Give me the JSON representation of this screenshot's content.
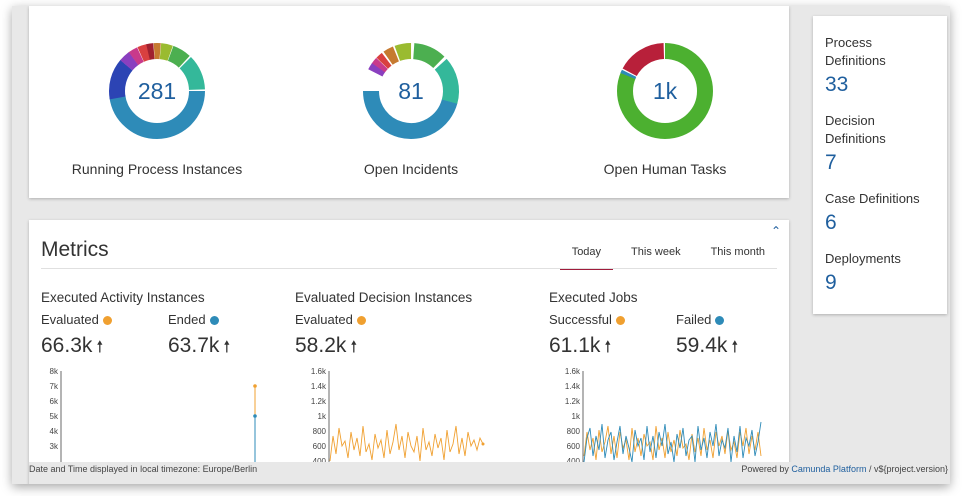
{
  "donuts": [
    {
      "value": "281",
      "label": "Running Process Instances"
    },
    {
      "value": "81",
      "label": "Open Incidents"
    },
    {
      "value": "1k",
      "label": "Open Human Tasks"
    }
  ],
  "sidebar": {
    "items": [
      {
        "label": "Process Definitions",
        "value": "33"
      },
      {
        "label": "Decision Definitions",
        "value": "7"
      },
      {
        "label": "Case Definitions",
        "value": "6"
      },
      {
        "label": "Deployments",
        "value": "9"
      }
    ]
  },
  "metrics": {
    "title": "Metrics",
    "collapse_icon": "chevron-up-icon",
    "tabs": [
      "Today",
      "This week",
      "This month"
    ],
    "active_tab": "Today",
    "columns": [
      {
        "title": "Executed Activity Instances",
        "stats": [
          {
            "label": "Evaluated",
            "color": "#f0a030",
            "value": "66.3k"
          },
          {
            "label": "Ended",
            "color": "#2e8bb8",
            "value": "63.7k"
          }
        ],
        "yticks": [
          "8k",
          "7k",
          "6k",
          "5k",
          "4k",
          "3k"
        ]
      },
      {
        "title": "Evaluated Decision Instances",
        "stats": [
          {
            "label": "Evaluated",
            "color": "#f0a030",
            "value": "58.2k"
          }
        ],
        "yticks": [
          "1.6k",
          "1.4k",
          "1.2k",
          "1k",
          "800",
          "600",
          "400"
        ]
      },
      {
        "title": "Executed Jobs",
        "stats": [
          {
            "label": "Successful",
            "color": "#f0a030",
            "value": "61.1k"
          },
          {
            "label": "Failed",
            "color": "#2e8bb8",
            "value": "59.4k"
          }
        ],
        "yticks": [
          "1.6k",
          "1.4k",
          "1.2k",
          "1k",
          "800",
          "600",
          "400"
        ]
      }
    ]
  },
  "footer": {
    "timezone_text": "Date and Time displayed in local timezone: Europe/Berlin",
    "powered_prefix": "Powered by ",
    "powered_link": "Camunda Platform",
    "powered_suffix": " / v${project.version}"
  }
}
